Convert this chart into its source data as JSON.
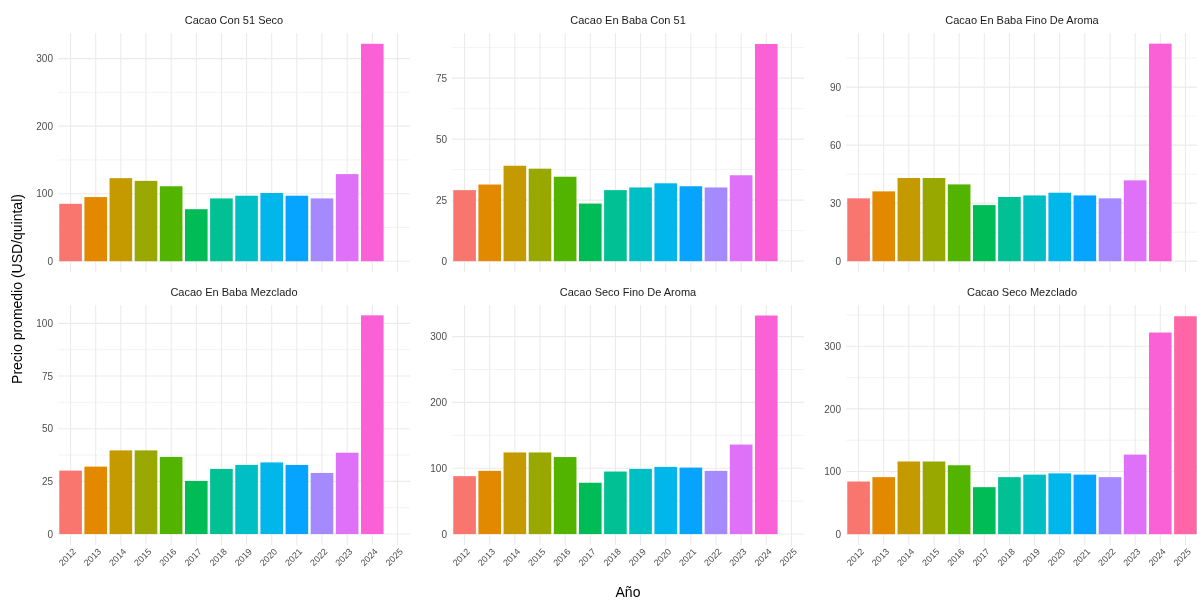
{
  "chart_data": [
    {
      "type": "bar",
      "title": "Cacao Con 51 Seco",
      "ylabel": "Precio promedio (USD/quintal)",
      "categories": [
        "2012",
        "2013",
        "2014",
        "2015",
        "2016",
        "2017",
        "2018",
        "2019",
        "2020",
        "2021",
        "2022",
        "2023",
        "2024",
        "2025"
      ],
      "values": [
        85,
        95,
        123,
        119,
        111,
        77,
        93,
        97,
        101,
        97,
        93,
        129,
        322,
        null
      ],
      "colors": [
        "#f8766d",
        "#e38900",
        "#c49a00",
        "#99a800",
        "#53b400",
        "#00bc56",
        "#00c094",
        "#00bfc4",
        "#00b6eb",
        "#06a4ff",
        "#a58aff",
        "#df70f8",
        "#fb61d7",
        null
      ],
      "ylim": [
        -16,
        338
      ],
      "yticks": [
        0,
        {
          "value": 50,
          "label": null
        },
        100,
        {
          "value": 150,
          "label": null
        },
        200,
        {
          "value": 250,
          "label": null
        },
        300
      ],
      "grid": true,
      "tick_labels": "y"
    },
    {
      "type": "bar",
      "title": "Cacao En Baba Con 51",
      "categories": [
        "2012",
        "2013",
        "2014",
        "2015",
        "2016",
        "2017",
        "2018",
        "2019",
        "2020",
        "2021",
        "2022",
        "2023",
        "2024",
        "2025"
      ],
      "values": [
        29.1,
        31.4,
        39.1,
        37.9,
        34.6,
        23.6,
        29.1,
        30.2,
        31.9,
        30.7,
        30.2,
        35.2,
        89,
        null
      ],
      "colors": [
        "#f8766d",
        "#e38900",
        "#c49a00",
        "#99a800",
        "#53b400",
        "#00bc56",
        "#00c094",
        "#00bfc4",
        "#00b6eb",
        "#06a4ff",
        "#a58aff",
        "#df70f8",
        "#fb61d7",
        null
      ],
      "ylim": [
        -4.45,
        93.5
      ],
      "yticks": [
        0,
        {
          "value": 12.5,
          "label": null
        },
        25,
        {
          "value": 37.5,
          "label": null
        },
        50,
        {
          "value": 62.5,
          "label": null
        },
        75,
        {
          "value": 87.5,
          "label": null
        }
      ],
      "grid": true,
      "tick_labels": "y"
    },
    {
      "type": "bar",
      "title": "Cacao En Baba Fino De Aroma",
      "categories": [
        "2012",
        "2013",
        "2014",
        "2015",
        "2016",
        "2017",
        "2018",
        "2019",
        "2020",
        "2021",
        "2022",
        "2023",
        "2024",
        "2025"
      ],
      "values": [
        32.5,
        36.1,
        43,
        43,
        39.7,
        29,
        33.2,
        34,
        35.4,
        34,
        32.5,
        41.8,
        112.5,
        null
      ],
      "colors": [
        "#f8766d",
        "#e38900",
        "#c49a00",
        "#99a800",
        "#53b400",
        "#00bc56",
        "#00c094",
        "#00bfc4",
        "#00b6eb",
        "#06a4ff",
        "#a58aff",
        "#df70f8",
        "#fb61d7",
        null
      ],
      "ylim": [
        -5.6,
        118
      ],
      "yticks": [
        0,
        {
          "value": 15,
          "label": null
        },
        30,
        {
          "value": 45,
          "label": null
        },
        60,
        {
          "value": 75,
          "label": null
        },
        90,
        {
          "value": 105,
          "label": null
        }
      ],
      "grid": true,
      "tick_labels": "y"
    },
    {
      "type": "bar",
      "title": "Cacao En Baba Mezclado",
      "categories": [
        "2012",
        "2013",
        "2014",
        "2015",
        "2016",
        "2017",
        "2018",
        "2019",
        "2020",
        "2021",
        "2022",
        "2023",
        "2024",
        "2025"
      ],
      "values": [
        30.1,
        32,
        39.7,
        39.7,
        36.6,
        25.2,
        30.9,
        32.8,
        34,
        32.8,
        29,
        38.6,
        103.8,
        null
      ],
      "colors": [
        "#f8766d",
        "#e38900",
        "#c49a00",
        "#99a800",
        "#53b400",
        "#00bc56",
        "#00c094",
        "#00bfc4",
        "#00b6eb",
        "#06a4ff",
        "#a58aff",
        "#df70f8",
        "#fb61d7",
        null
      ],
      "ylim": [
        -5.2,
        108.7
      ],
      "yticks": [
        0,
        {
          "value": 12.5,
          "label": null
        },
        25,
        {
          "value": 37.5,
          "label": null
        },
        50,
        {
          "value": 62.5,
          "label": null
        },
        75,
        {
          "value": 87.5,
          "label": null
        },
        100
      ],
      "grid": true
    },
    {
      "type": "bar",
      "title": "Cacao Seco Fino De Aroma",
      "xlabel": "Año",
      "categories": [
        "2012",
        "2013",
        "2014",
        "2015",
        "2016",
        "2017",
        "2018",
        "2019",
        "2020",
        "2021",
        "2022",
        "2023",
        "2024",
        "2025"
      ],
      "values": [
        88,
        96,
        124,
        124,
        117,
        78,
        95,
        99,
        102,
        101,
        96,
        136,
        332,
        null
      ],
      "colors": [
        "#f8766d",
        "#e38900",
        "#c49a00",
        "#99a800",
        "#53b400",
        "#00bc56",
        "#00c094",
        "#00bfc4",
        "#00b6eb",
        "#06a4ff",
        "#a58aff",
        "#df70f8",
        "#fb61d7",
        null
      ],
      "ylim": [
        -16.6,
        348
      ],
      "yticks": [
        0,
        {
          "value": 50,
          "label": null
        },
        100,
        {
          "value": 150,
          "label": null
        },
        200,
        {
          "value": 250,
          "label": null
        },
        300
      ],
      "grid": true
    },
    {
      "type": "bar",
      "title": "Cacao Seco Mezclado",
      "categories": [
        "2012",
        "2013",
        "2014",
        "2015",
        "2016",
        "2017",
        "2018",
        "2019",
        "2020",
        "2021",
        "2022",
        "2023",
        "2024",
        "2025"
      ],
      "values": [
        84,
        91,
        116,
        116,
        110,
        75,
        91,
        95,
        97,
        95,
        91,
        127,
        322,
        348
      ],
      "colors": [
        "#f8766d",
        "#e38900",
        "#c49a00",
        "#99a800",
        "#53b400",
        "#00bc56",
        "#00c094",
        "#00bfc4",
        "#00b6eb",
        "#06a4ff",
        "#a58aff",
        "#df70f8",
        "#fb61d7",
        "#ff66a8"
      ],
      "ylim": [
        -17.4,
        366
      ],
      "yticks": [
        0,
        {
          "value": 50,
          "label": null
        },
        100,
        {
          "value": 150,
          "label": null
        },
        200,
        {
          "value": 250,
          "label": null
        },
        300,
        {
          "value": 350,
          "label": null
        }
      ],
      "grid": true
    }
  ]
}
